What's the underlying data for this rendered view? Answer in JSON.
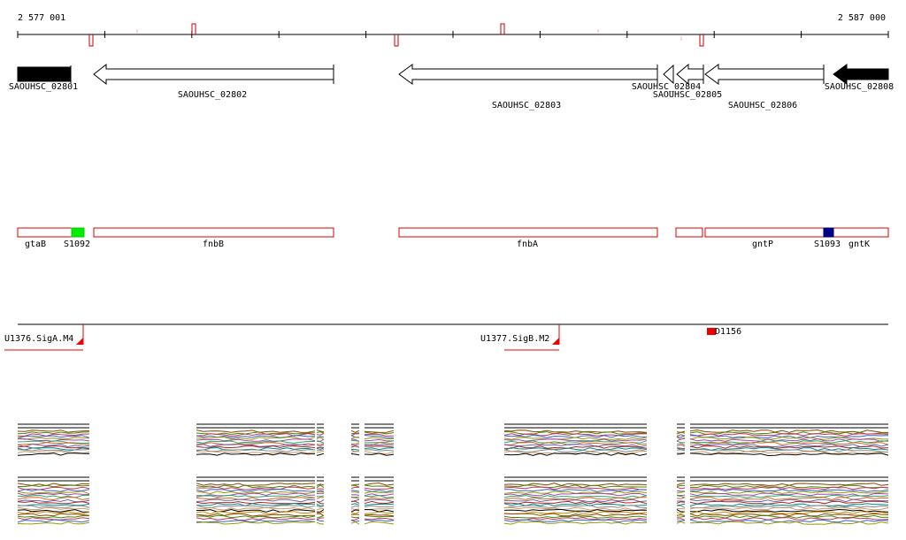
{
  "ruler": {
    "start_label": "2 577 001",
    "end_label": "2 587 000"
  },
  "genes": [
    {
      "name": "SAOUHSC_02801",
      "strand": "+",
      "fill": "#000000"
    },
    {
      "name": "SAOUHSC_02802",
      "strand": "-",
      "fill": "#ffffff"
    },
    {
      "name": "SAOUHSC_02803",
      "strand": "-",
      "fill": "#ffffff"
    },
    {
      "name": "SAOUHSC_02804",
      "strand": "-",
      "fill": "#ffffff"
    },
    {
      "name": "SAOUHSC_02805",
      "strand": "-",
      "fill": "#ffffff"
    },
    {
      "name": "SAOUHSC_02806",
      "strand": "-",
      "fill": "#ffffff"
    },
    {
      "name": "SAOUHSC_02808",
      "strand": "-",
      "fill": "#000000"
    }
  ],
  "annotations": {
    "labels": [
      "gtaB",
      "S1092",
      "fnbB",
      "fnbA",
      "gntP",
      "S1093",
      "gntK"
    ],
    "s1092_color": "#00ee00",
    "s1093_color": "#000088",
    "box_border": "#dd0000"
  },
  "features": {
    "labels": [
      "U1376.SigA.M4",
      "U1377.SigB.M2",
      "D1156"
    ],
    "color": "#ee0000"
  },
  "track_colors": [
    "#000000",
    "#cc8800",
    "#884400",
    "#448800",
    "#cc3366",
    "#3366cc",
    "#999900",
    "#aa44aa",
    "#22aa66",
    "#dd6622",
    "#6666aa",
    "#aa2222",
    "#008888",
    "#888888",
    "#cc9966"
  ]
}
